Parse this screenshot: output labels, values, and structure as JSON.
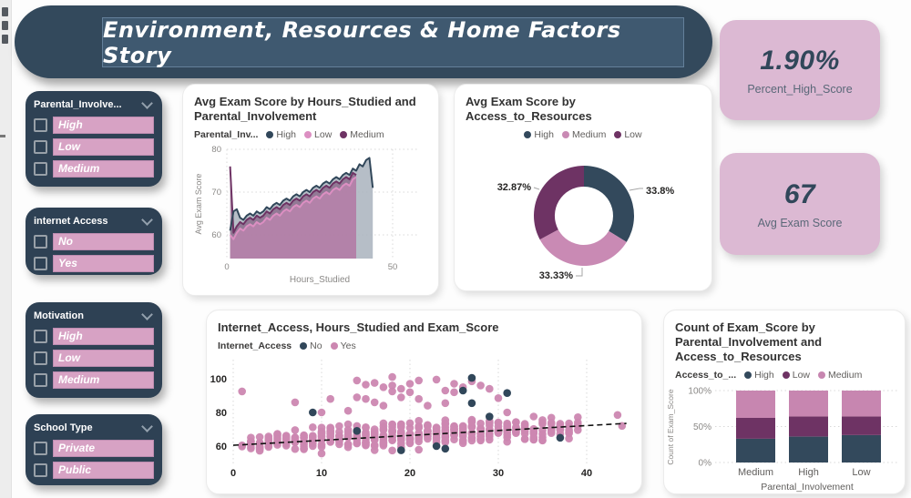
{
  "page": {
    "title": "Environment, Resources & Home Factors Story"
  },
  "colors": {
    "slate": "#31475A",
    "panel": "#2E4154",
    "pink_bar": "#D7A2C4",
    "purple": "#6E3364",
    "pink": "#CC87B1",
    "kpi_bg": "#DCB9D3",
    "banner_outer": "#33495C",
    "banner_inner": "#3F5970"
  },
  "slicers": [
    {
      "title": "Parental_Involve...",
      "items": [
        "High",
        "Low",
        "Medium"
      ]
    },
    {
      "title": "internet Access",
      "items": [
        "No",
        "Yes"
      ]
    },
    {
      "title": "Motivation",
      "items": [
        "High",
        "Low",
        "Medium"
      ]
    },
    {
      "title": "School Type",
      "items": [
        "Private",
        "Public"
      ]
    }
  ],
  "kpis": [
    {
      "value": "1.90%",
      "label": "Percent_High_Score"
    },
    {
      "value": "67",
      "label": "Avg Exam Score"
    }
  ],
  "chart_data": [
    {
      "type": "area",
      "title": "Avg Exam Score by Hours_Studied and Parental_Involvement",
      "legend_label": "Parental_Inv...",
      "xlabel": "Hours_Studied",
      "ylabel": "Avg Exam Score",
      "xlim": [
        0,
        50
      ],
      "ylim": [
        55,
        80
      ],
      "yticks": [
        80,
        70,
        60
      ],
      "xticks": [
        0,
        50
      ],
      "series": [
        {
          "name": "High",
          "color": "#31475A",
          "fill": "#AEB7C1",
          "fill_opacity": 0.9,
          "x_start": 1,
          "values": [
            61,
            65.5,
            66,
            64,
            63.5,
            64.5,
            65,
            64.5,
            65.5,
            65,
            65.5,
            66.5,
            66,
            67,
            67.5,
            67,
            68,
            68.5,
            68,
            69,
            69.5,
            69,
            70,
            70.5,
            70,
            71,
            71.5,
            71,
            72,
            72.5,
            72,
            73,
            73.5,
            73,
            74,
            74.5,
            74,
            75.5,
            75,
            76.5,
            76,
            77.5,
            78,
            71
          ]
        },
        {
          "name": "Low",
          "color": "#DC8FC2",
          "fill": "#DC8FC2",
          "fill_opacity": 0.45,
          "x_start": 1,
          "values": [
            60,
            59,
            60.5,
            61.5,
            61,
            62,
            62.5,
            62,
            63,
            62.5,
            63,
            64,
            63.5,
            64.5,
            65,
            64.5,
            65.5,
            66,
            65.5,
            66.5,
            67,
            66.5,
            67.5,
            68,
            67.5,
            68.5,
            69,
            68.5,
            69.5,
            70,
            69.5,
            70.5,
            71,
            70.5,
            71.5,
            72,
            71.5,
            73,
            73.5
          ]
        },
        {
          "name": "Medium",
          "color": "#6E3364",
          "fill": "#6E3364",
          "fill_opacity": 0.5,
          "x_start": 1,
          "values": [
            76,
            60.5,
            62,
            63,
            62.5,
            63.5,
            64,
            63.5,
            64.5,
            64,
            64.5,
            65.5,
            65,
            66,
            66.5,
            66,
            67,
            67.5,
            67,
            68,
            68.5,
            68,
            69,
            69.5,
            69,
            70,
            70.5,
            70,
            71,
            71.5,
            71,
            72,
            72.5,
            72,
            73,
            73.5,
            73,
            74.5,
            74
          ]
        }
      ]
    },
    {
      "type": "pie",
      "title": "Avg Exam Score by Access_to_Resources",
      "slices": [
        {
          "name": "High",
          "value": 33.8,
          "label": "33.8%",
          "color": "#33495C"
        },
        {
          "name": "Medium",
          "value": 33.33,
          "label": "33.33%",
          "color": "#C98AB4"
        },
        {
          "name": "Low",
          "value": 32.87,
          "label": "32.87%",
          "color": "#6E3364"
        }
      ]
    },
    {
      "type": "scatter",
      "title": "Internet_Access, Hours_Studied and Exam_Score",
      "legend_label": "Internet_Access",
      "groups": [
        {
          "name": "No",
          "color": "#31475A"
        },
        {
          "name": "Yes",
          "color": "#CC87B1"
        }
      ],
      "xticks": [
        0,
        10,
        20,
        30,
        40
      ],
      "yticks": [
        100,
        80,
        60
      ],
      "columns": [
        [
          1,
          59,
          61,
          2
        ],
        [
          2,
          57,
          66,
          8
        ],
        [
          3,
          55,
          67,
          10
        ],
        [
          4,
          57,
          68,
          9
        ],
        [
          5,
          56,
          69,
          10
        ],
        [
          6,
          58,
          68,
          9
        ],
        [
          7,
          57,
          72,
          10
        ],
        [
          8,
          56,
          71,
          10
        ],
        [
          9,
          57,
          72,
          10
        ],
        [
          10,
          55,
          73,
          12
        ],
        [
          11,
          57,
          74,
          11
        ],
        [
          12,
          56,
          74,
          12
        ],
        [
          13,
          55,
          74,
          12
        ],
        [
          14,
          56,
          75,
          13
        ],
        [
          15,
          57,
          75,
          12
        ],
        [
          16,
          56,
          76,
          13
        ],
        [
          17,
          57,
          76,
          12
        ],
        [
          18,
          55,
          77,
          14
        ],
        [
          19,
          56,
          77,
          13
        ],
        [
          20,
          57,
          77,
          14
        ],
        [
          21,
          57,
          77,
          14
        ],
        [
          22,
          58,
          77,
          13
        ],
        [
          23,
          58,
          76,
          12
        ],
        [
          24,
          57,
          77,
          13
        ],
        [
          25,
          59,
          77,
          12
        ],
        [
          26,
          59,
          77,
          12
        ],
        [
          27,
          60,
          77,
          11
        ],
        [
          28,
          60,
          77,
          12
        ],
        [
          29,
          60,
          78,
          11
        ],
        [
          30,
          61,
          77,
          10
        ],
        [
          31,
          61,
          77,
          10
        ],
        [
          32,
          62,
          78,
          9
        ],
        [
          33,
          62,
          78,
          9
        ],
        [
          34,
          62,
          79,
          8
        ],
        [
          35,
          63,
          79,
          8
        ],
        [
          36,
          63,
          78,
          7
        ],
        [
          37,
          64,
          77,
          6
        ],
        [
          38,
          64,
          79,
          6
        ],
        [
          39,
          65,
          80,
          5
        ]
      ],
      "yes_outliers": [
        [
          1,
          92.5
        ],
        [
          7,
          86
        ],
        [
          10,
          80
        ],
        [
          11,
          88
        ],
        [
          13,
          81
        ],
        [
          14,
          99
        ],
        [
          14,
          89
        ],
        [
          15,
          96.5
        ],
        [
          15,
          88
        ],
        [
          16,
          97.5
        ],
        [
          16,
          86
        ],
        [
          17,
          95
        ],
        [
          17,
          84
        ],
        [
          18,
          101
        ],
        [
          18,
          96
        ],
        [
          18,
          92.5
        ],
        [
          19,
          94
        ],
        [
          19,
          89
        ],
        [
          20,
          97
        ],
        [
          20,
          92
        ],
        [
          21,
          99
        ],
        [
          21,
          88
        ],
        [
          22,
          84
        ],
        [
          23,
          99.5
        ],
        [
          24,
          93
        ],
        [
          24,
          85.5
        ],
        [
          25,
          97
        ],
        [
          25,
          92
        ],
        [
          26,
          95
        ],
        [
          27,
          98.5
        ],
        [
          28,
          96
        ],
        [
          29,
          94
        ],
        [
          30,
          88.5
        ],
        [
          31,
          80
        ],
        [
          43.5,
          78.5
        ],
        [
          44,
          72
        ]
      ],
      "no_points": [
        [
          9,
          80
        ],
        [
          14,
          69
        ],
        [
          19,
          57.5
        ],
        [
          23,
          60
        ],
        [
          24,
          58.5
        ],
        [
          26,
          93
        ],
        [
          27,
          100.5
        ],
        [
          27,
          85.5
        ],
        [
          29,
          77.5
        ],
        [
          31,
          91.5
        ],
        [
          37,
          65
        ]
      ],
      "trend": {
        "x1": 0,
        "y1": 60.5,
        "x2": 44.5,
        "y2": 73.5
      }
    },
    {
      "type": "bar",
      "title": "Count of Exam_Score by Parental_Involvement and Access_to_Resources",
      "legend_label": "Access_to_...",
      "xlabel": "Parental_Involvement",
      "ylabel": "Count of Exam_Score",
      "yticks": [
        "100%",
        "50%",
        "0%"
      ],
      "categories": [
        "Medium",
        "High",
        "Low"
      ],
      "series": [
        {
          "name": "High",
          "color": "#33495C",
          "values": [
            33,
            36,
            38
          ]
        },
        {
          "name": "Low",
          "color": "#6E3364",
          "values": [
            29,
            28,
            26
          ]
        },
        {
          "name": "Medium",
          "color": "#C786B0",
          "values": [
            38,
            36,
            36
          ]
        }
      ]
    }
  ]
}
